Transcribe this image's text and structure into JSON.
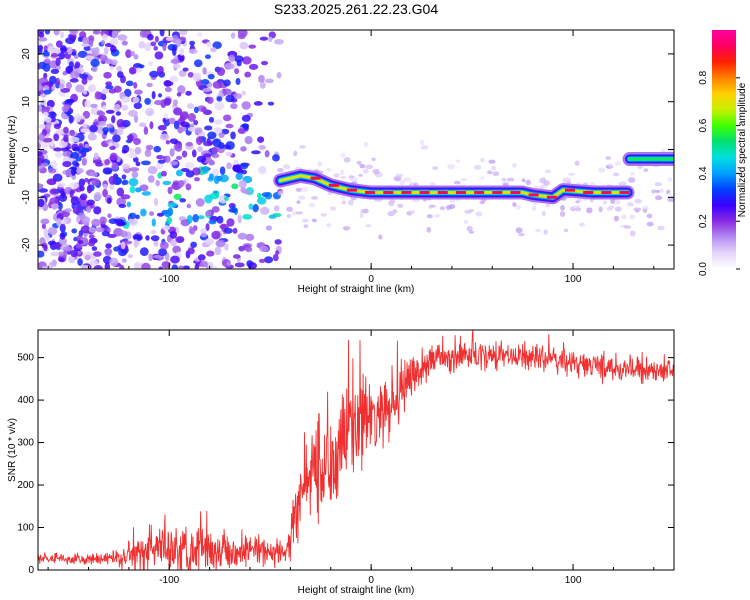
{
  "title": "S233.2025.261.22.23.G04",
  "chart_data": [
    {
      "type": "heatmap",
      "name": "spectrogram",
      "xlabel": "Height of straight line (km)",
      "ylabel": "Frequency (Hz)",
      "xlim": [
        -165,
        150
      ],
      "ylim": [
        -25,
        25
      ],
      "x_ticks": [
        -100,
        0,
        100
      ],
      "y_ticks": [
        -20,
        -10,
        0,
        10,
        20
      ],
      "colorbar": {
        "label": "Normalized spectral amplitude",
        "range": [
          0,
          1
        ],
        "ticks": [
          "0.0",
          "0.2",
          "0.4",
          "0.6",
          "0.8"
        ],
        "colors": [
          "#ffffff",
          "#e6d6fb",
          "#b48cf2",
          "#8a2be2",
          "#3a00ff",
          "#0040ff",
          "#00a0ff",
          "#00e0e0",
          "#00e070",
          "#40ff00",
          "#c8f000",
          "#ffd000",
          "#ff8000",
          "#ff2000",
          "#ff0060",
          "#ff00a0"
        ]
      },
      "ridge": {
        "points": [
          {
            "x": -45,
            "y": -6.5
          },
          {
            "x": -35,
            "y": -5.5
          },
          {
            "x": -28,
            "y": -6.0
          },
          {
            "x": -20,
            "y": -7.5
          },
          {
            "x": -10,
            "y": -8.5
          },
          {
            "x": 0,
            "y": -9.0
          },
          {
            "x": 20,
            "y": -9.0
          },
          {
            "x": 50,
            "y": -9.0
          },
          {
            "x": 75,
            "y": -9.0
          },
          {
            "x": 80,
            "y": -9.5
          },
          {
            "x": 90,
            "y": -10.0
          },
          {
            "x": 95,
            "y": -8.5
          },
          {
            "x": 110,
            "y": -9.0
          },
          {
            "x": 127,
            "y": -9.0
          }
        ],
        "jump_segment": {
          "x_start": 128,
          "x_end": 150,
          "y": -2.0
        }
      }
    },
    {
      "type": "line",
      "name": "snr",
      "xlabel": "Height of straight line (km)",
      "ylabel": "SNR (10 * v/v)",
      "xlim": [
        -165,
        150
      ],
      "ylim": [
        0,
        565
      ],
      "x_ticks": [
        -100,
        0,
        100
      ],
      "y_ticks": [
        0,
        100,
        200,
        300,
        400,
        500
      ],
      "color": "#f03030",
      "envelope": [
        {
          "x": -165,
          "mean": 25,
          "noise": 12
        },
        {
          "x": -130,
          "mean": 25,
          "noise": 12
        },
        {
          "x": -115,
          "mean": 40,
          "noise": 35
        },
        {
          "x": -100,
          "mean": 55,
          "noise": 55
        },
        {
          "x": -80,
          "mean": 50,
          "noise": 45
        },
        {
          "x": -60,
          "mean": 45,
          "noise": 30
        },
        {
          "x": -42,
          "mean": 40,
          "noise": 25
        },
        {
          "x": -38,
          "mean": 110,
          "noise": 60
        },
        {
          "x": -30,
          "mean": 240,
          "noise": 110
        },
        {
          "x": -20,
          "mean": 260,
          "noise": 100
        },
        {
          "x": -10,
          "mean": 340,
          "noise": 110
        },
        {
          "x": 0,
          "mean": 350,
          "noise": 70
        },
        {
          "x": 10,
          "mean": 380,
          "noise": 60
        },
        {
          "x": 20,
          "mean": 450,
          "noise": 45
        },
        {
          "x": 30,
          "mean": 495,
          "noise": 30
        },
        {
          "x": 50,
          "mean": 505,
          "noise": 30
        },
        {
          "x": 80,
          "mean": 500,
          "noise": 25
        },
        {
          "x": 110,
          "mean": 480,
          "noise": 25
        },
        {
          "x": 150,
          "mean": 465,
          "noise": 25
        }
      ]
    }
  ]
}
